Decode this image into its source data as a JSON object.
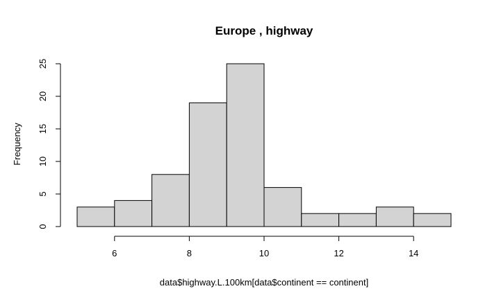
{
  "chart_data": {
    "type": "bar",
    "title": "Europe , highway",
    "xlabel": "data$highway.L.100km[data$continent == continent]",
    "ylabel": "Frequency",
    "bins": [
      {
        "x0": 5,
        "x1": 6,
        "count": 3
      },
      {
        "x0": 6,
        "x1": 7,
        "count": 4
      },
      {
        "x0": 7,
        "x1": 8,
        "count": 8
      },
      {
        "x0": 8,
        "x1": 9,
        "count": 19
      },
      {
        "x0": 9,
        "x1": 10,
        "count": 25
      },
      {
        "x0": 10,
        "x1": 11,
        "count": 6
      },
      {
        "x0": 11,
        "x1": 12,
        "count": 2
      },
      {
        "x0": 12,
        "x1": 13,
        "count": 2
      },
      {
        "x0": 13,
        "x1": 14,
        "count": 3
      },
      {
        "x0": 14,
        "x1": 15,
        "count": 2
      }
    ],
    "xlim": [
      5,
      15
    ],
    "ylim": [
      0,
      25
    ],
    "x_ticks": [
      "6",
      "8",
      "10",
      "12",
      "14"
    ],
    "y_ticks": [
      "0",
      "5",
      "10",
      "15",
      "20",
      "25"
    ],
    "bar_fill": "#d3d3d3",
    "bar_stroke": "#000000",
    "grid": false,
    "legend": "none"
  }
}
